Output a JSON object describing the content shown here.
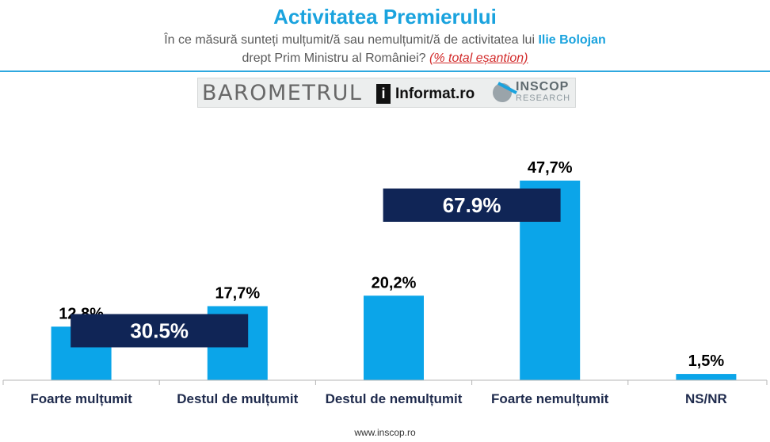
{
  "header": {
    "title": "Activitatea Premierului",
    "subtitle_line1_prefix": "În ce măsură sunteți mulțumit/ă sau nemulțumit/ă de activitatea lui ",
    "subtitle_name": "Ilie Bolojan",
    "subtitle_line2": "drept Prim Ministru al României? ",
    "subtitle_note": "(% total eșantion)"
  },
  "banner": {
    "barometru": "BAROMETRUL",
    "informat_icon": "i",
    "informat": "Informat.ro",
    "inscop": "INSCOP",
    "research": "RESEARCH"
  },
  "chart_data": {
    "type": "bar",
    "categories": [
      "Foarte mulțumit",
      "Destul de mulțumit",
      "Destul de nemulțumit",
      "Foarte nemulțumit",
      "NS/NR"
    ],
    "values": [
      12.8,
      17.7,
      20.2,
      47.7,
      1.5
    ],
    "value_labels": [
      "12,8%",
      "17,7%",
      "20,2%",
      "47,7%",
      "1,5%"
    ],
    "groups": [
      {
        "label": "30.5%",
        "categories": [
          "Foarte mulțumit",
          "Destul de mulțumit"
        ]
      },
      {
        "label": "67.9%",
        "categories": [
          "Destul de nemulțumit",
          "Foarte nemulțumit"
        ]
      }
    ],
    "ylim": [
      0,
      47.7
    ],
    "colors": {
      "bar": "#0ba5e9",
      "group_box": "#102556"
    },
    "grid": false
  },
  "footer": {
    "url": "www.inscop.ro"
  }
}
